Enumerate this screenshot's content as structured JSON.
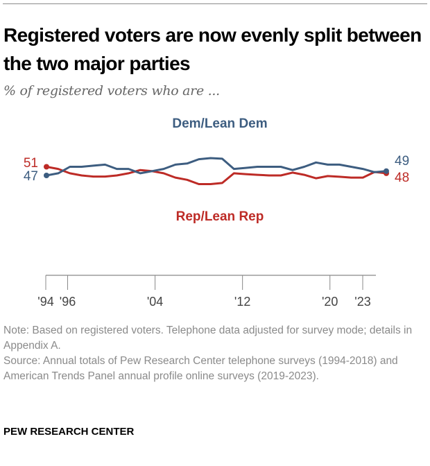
{
  "title": "Registered voters are now evenly split between the two major parties",
  "subtitle": "% of registered voters who are ...",
  "note": "Note: Based on registered voters. Telephone data adjusted for survey mode; details in Appendix A.",
  "source": "Source: Annual totals of Pew Research Center telephone surveys (1994-2018) and American Trends Panel annual profile online surveys (2019-2023).",
  "brand": "PEW RESEARCH CENTER",
  "chart_data": {
    "type": "line",
    "title": "Registered voters are now evenly split between the two major parties",
    "subtitle": "% of registered voters who are ...",
    "x": [
      1994,
      1995,
      1996,
      1997,
      1998,
      1999,
      2000,
      2001,
      2002,
      2003,
      2004,
      2005,
      2006,
      2007,
      2008,
      2009,
      2010,
      2011,
      2012,
      2013,
      2014,
      2015,
      2016,
      2017,
      2018,
      2019,
      2020,
      2021,
      2022,
      2023
    ],
    "xlim": [
      1994,
      2023
    ],
    "ylim": [
      40,
      58
    ],
    "grid": false,
    "x_ticks": [
      {
        "year": 1994,
        "label": "'94"
      },
      {
        "year": 1996,
        "label": "'96"
      },
      {
        "year": 2004,
        "label": "'04"
      },
      {
        "year": 2012,
        "label": "'12"
      },
      {
        "year": 2020,
        "label": "'20"
      },
      {
        "year": 2023,
        "label": "'23"
      }
    ],
    "series": [
      {
        "name": "Dem/Lean Dem",
        "color": "#3d5d80",
        "values": [
          47,
          48,
          51,
          51,
          51.5,
          52,
          50,
          50,
          48,
          49,
          50,
          52,
          52.5,
          54.5,
          55,
          54.7,
          50,
          50.5,
          51,
          51,
          51,
          49.5,
          51,
          53,
          52,
          52,
          51,
          50,
          48.5,
          49
        ],
        "start_label": "47",
        "end_label": "49"
      },
      {
        "name": "Rep/Lean Rep",
        "color": "#bd2b26",
        "values": [
          51,
          50,
          48,
          47,
          46.5,
          46.5,
          47,
          48,
          49.5,
          49,
          48,
          46,
          45,
          43,
          43,
          43.5,
          48,
          47.6,
          47.3,
          47,
          47,
          48.3,
          47.3,
          45.7,
          46.7,
          46.4,
          46,
          46,
          48.6,
          48
        ],
        "start_label": "51",
        "end_label": "48"
      }
    ]
  }
}
